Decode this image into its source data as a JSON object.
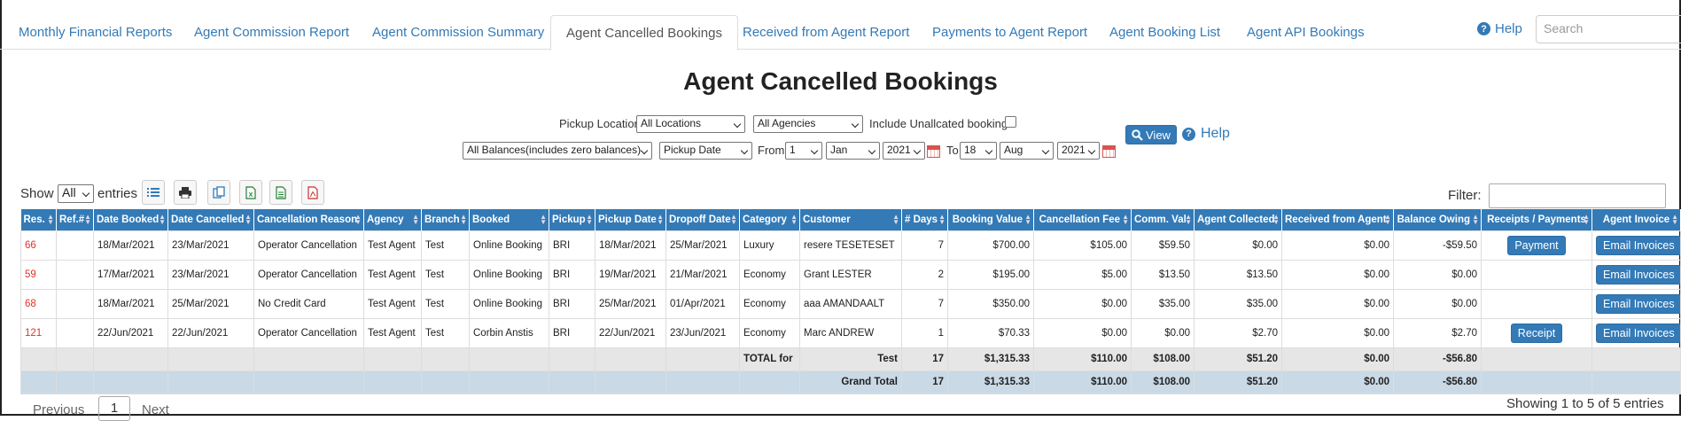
{
  "tabs": [
    {
      "label": "Monthly Financial Reports"
    },
    {
      "label": "Agent Commission Report"
    },
    {
      "label": "Agent Commission Summary"
    },
    {
      "label": "Agent Cancelled Bookings"
    },
    {
      "label": "Received from Agent Report"
    },
    {
      "label": "Payments to Agent Report"
    },
    {
      "label": "Agent Booking List"
    },
    {
      "label": "Agent API Bookings"
    }
  ],
  "active_tab": "Agent Cancelled Bookings",
  "top_help": "Help",
  "search": {
    "placeholder": "Search"
  },
  "page_title": "Agent Cancelled Bookings",
  "filters": {
    "pickup_location_label": "Pickup Location",
    "pickup_location": "All Locations",
    "agencies": "All Agencies",
    "include_unallocated_label": "Include Unallcated bookings",
    "balances": "All Balances(includes zero balances)",
    "date_type": "Pickup Date",
    "from_label": "From",
    "from_day": "1",
    "from_month": "Jan",
    "from_year": "2021",
    "to_label": "To",
    "to_day": "18",
    "to_month": "Aug",
    "to_year": "2021",
    "view_button": "View",
    "help": "Help"
  },
  "list_controls": {
    "show_label": "Show",
    "show_value": "All",
    "entries_label": "entries",
    "filter_label": "Filter:"
  },
  "table": {
    "headers": [
      "Res.",
      "Ref.#",
      "Date Booked",
      "Date Cancelled",
      "Cancellation Reason",
      "Agency",
      "Branch",
      "Booked",
      "Pickup",
      "Pickup Date",
      "Dropoff Date",
      "Category",
      "Customer",
      "# Days",
      "Booking Value",
      "Cancellation Fee",
      "Comm. Val",
      "Agent Collected",
      "Received from Agent",
      "Balance Owing",
      "Receipts / Payments",
      "Agent Invoice"
    ],
    "rows": [
      {
        "res": "66",
        "ref": "",
        "date_booked": "18/Mar/2021",
        "date_cancelled": "23/Mar/2021",
        "reason": "Operator Cancellation",
        "agency": "Test Agent",
        "branch": "Test",
        "booked": "Online Booking",
        "pickup": "BRI",
        "pickup_date": "18/Mar/2021",
        "dropoff_date": "25/Mar/2021",
        "category": "Luxury",
        "customer": "resere TESETESET",
        "days": "7",
        "booking_value": "$700.00",
        "cancellation_fee": "$105.00",
        "comm_val": "$59.50",
        "agent_collected": "$0.00",
        "received": "$0.00",
        "balance": "-$59.50",
        "action": "Payment",
        "invoice": "Email Invoices"
      },
      {
        "res": "59",
        "ref": "",
        "date_booked": "17/Mar/2021",
        "date_cancelled": "23/Mar/2021",
        "reason": "Operator Cancellation",
        "agency": "Test Agent",
        "branch": "Test",
        "booked": "Online Booking",
        "pickup": "BRI",
        "pickup_date": "19/Mar/2021",
        "dropoff_date": "21/Mar/2021",
        "category": "Economy",
        "customer": "Grant LESTER",
        "days": "2",
        "booking_value": "$195.00",
        "cancellation_fee": "$5.00",
        "comm_val": "$13.50",
        "agent_collected": "$13.50",
        "received": "$0.00",
        "balance": "$0.00",
        "action": "",
        "invoice": "Email Invoices"
      },
      {
        "res": "68",
        "ref": "",
        "date_booked": "18/Mar/2021",
        "date_cancelled": "25/Mar/2021",
        "reason": "No Credit Card",
        "agency": "Test Agent",
        "branch": "Test",
        "booked": "Online Booking",
        "pickup": "BRI",
        "pickup_date": "25/Mar/2021",
        "dropoff_date": "01/Apr/2021",
        "category": "Economy",
        "customer": "aaa AMANDAALT",
        "days": "7",
        "booking_value": "$350.00",
        "cancellation_fee": "$0.00",
        "comm_val": "$35.00",
        "agent_collected": "$35.00",
        "received": "$0.00",
        "balance": "$0.00",
        "action": "",
        "invoice": "Email Invoices"
      },
      {
        "res": "121",
        "ref": "",
        "date_booked": "22/Jun/2021",
        "date_cancelled": "22/Jun/2021",
        "reason": "Operator Cancellation",
        "agency": "Test Agent",
        "branch": "Test",
        "booked": "Corbin Anstis",
        "pickup": "BRI",
        "pickup_date": "22/Jun/2021",
        "dropoff_date": "23/Jun/2021",
        "category": "Economy",
        "customer": "Marc ANDREW",
        "days": "1",
        "booking_value": "$70.33",
        "cancellation_fee": "$0.00",
        "comm_val": "$0.00",
        "agent_collected": "$2.70",
        "received": "$0.00",
        "balance": "$2.70",
        "action": "Receipt",
        "invoice": "Email Invoices"
      }
    ],
    "total": {
      "label": "TOTAL for",
      "name": "Test",
      "days": "17",
      "booking_value": "$1,315.33",
      "cancellation_fee": "$110.00",
      "comm_val": "$108.00",
      "agent_collected": "$51.20",
      "received": "$0.00",
      "balance": "-$56.80"
    },
    "grand": {
      "label": "Grand Total",
      "days": "17",
      "booking_value": "$1,315.33",
      "cancellation_fee": "$110.00",
      "comm_val": "$108.00",
      "agent_collected": "$51.20",
      "received": "$0.00",
      "balance": "-$56.80"
    }
  },
  "pagination": {
    "prev": "Previous",
    "page": "1",
    "next": "Next",
    "info": "Showing 1 to 5 of 5 entries"
  }
}
